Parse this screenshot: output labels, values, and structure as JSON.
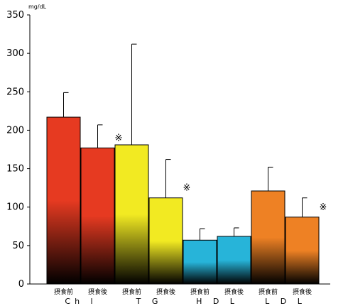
{
  "chart_data": {
    "type": "bar",
    "title": "",
    "unit": "mg/dL",
    "ylim": [
      0,
      350
    ],
    "yticks": [
      0,
      50,
      100,
      150,
      200,
      250,
      300,
      350
    ],
    "grid": false,
    "groups": [
      {
        "label": "Ch l",
        "color": "#e63a21",
        "bars": [
          {
            "label": "摂食前",
            "value": 217,
            "error": 32,
            "mark": ""
          },
          {
            "label": "摂食後",
            "value": 177,
            "error": 30,
            "mark": "※"
          }
        ]
      },
      {
        "label": "T G",
        "color": "#f2ea22",
        "bars": [
          {
            "label": "摂食前",
            "value": 181,
            "error": 131,
            "mark": ""
          },
          {
            "label": "摂食後",
            "value": 112,
            "error": 50,
            "mark": "※"
          }
        ]
      },
      {
        "label": "H D L",
        "color": "#27b4d9",
        "bars": [
          {
            "label": "摂食前",
            "value": 57,
            "error": 15,
            "mark": ""
          },
          {
            "label": "摂食後",
            "value": 62,
            "error": 11,
            "mark": ""
          }
        ]
      },
      {
        "label": "L D L",
        "color": "#ee8124",
        "bars": [
          {
            "label": "摂食前",
            "value": 121,
            "error": 31,
            "mark": ""
          },
          {
            "label": "摂食後",
            "value": 87,
            "error": 25,
            "mark": "※"
          }
        ]
      }
    ]
  }
}
